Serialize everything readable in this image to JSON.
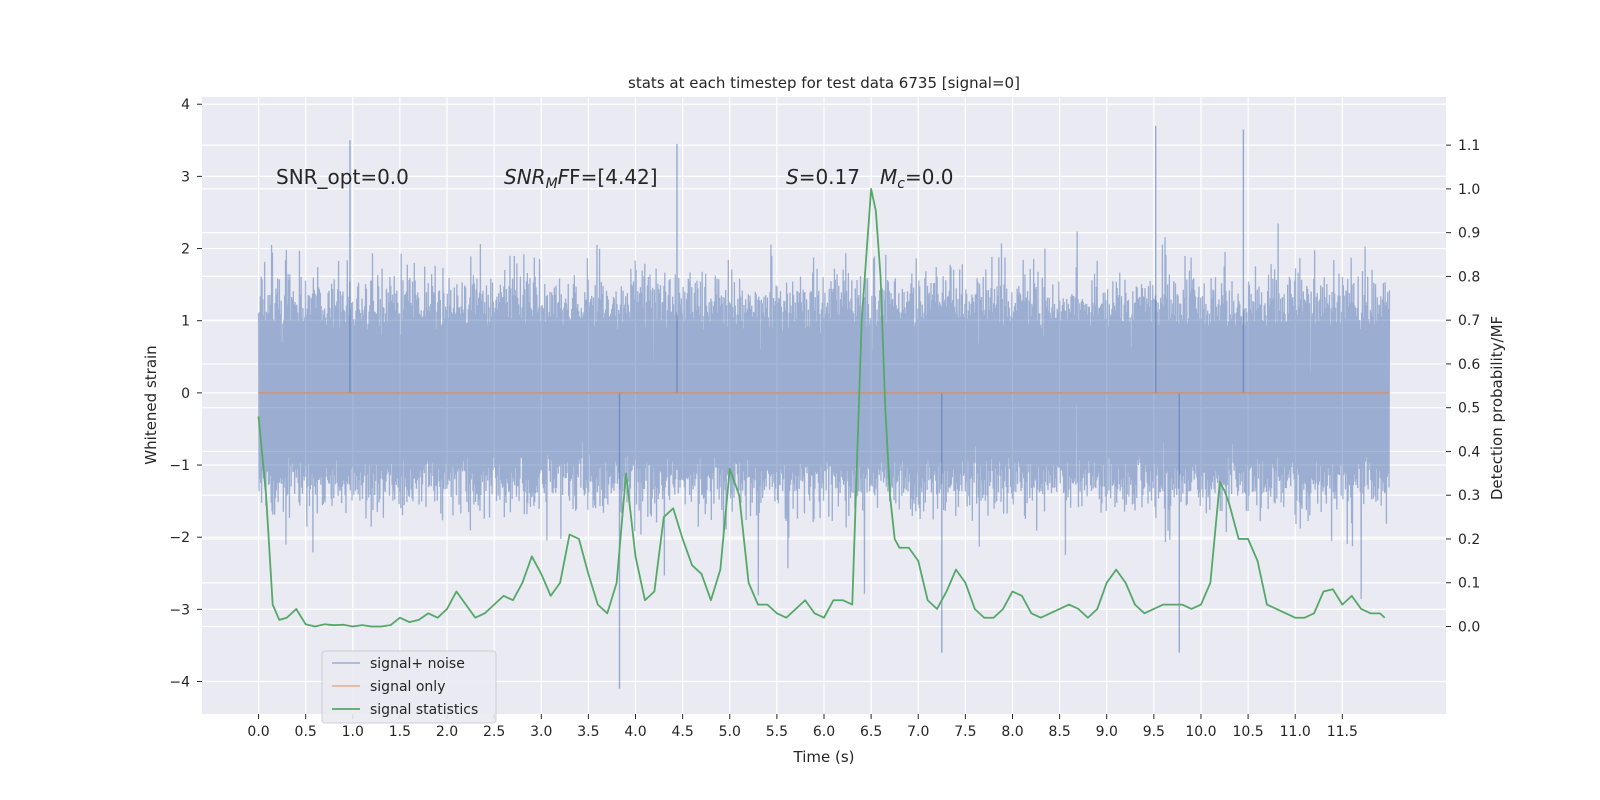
{
  "chart_data": {
    "type": "line",
    "title": "stats at each timestep for test data 6735 [signal=0]",
    "xlabel": "Time (s)",
    "ylabel": "Whitened strain",
    "y2label": "Detection probability/MF",
    "xlim": [
      -0.6,
      12.6
    ],
    "ylim": [
      -4.45,
      4.1
    ],
    "y2lim": [
      -0.2,
      1.21
    ],
    "x_ticks": [
      "0.0",
      "0.5",
      "1.0",
      "1.5",
      "2.0",
      "2.5",
      "3.0",
      "3.5",
      "4.0",
      "4.5",
      "5.0",
      "5.5",
      "6.0",
      "6.5",
      "7.0",
      "7.5",
      "8.0",
      "8.5",
      "9.0",
      "9.5",
      "10.0",
      "10.5",
      "11.0",
      "11.5"
    ],
    "y_ticks": [
      4,
      3,
      2,
      1,
      0,
      -1,
      -2,
      -3,
      -4
    ],
    "y_tick_labels": [
      "4",
      "3",
      "2",
      "1",
      "0",
      "−1",
      "−2",
      "−3",
      "−4"
    ],
    "y2_ticks": [
      1.1,
      1.0,
      0.9,
      0.8,
      0.7,
      0.6,
      0.5,
      0.4,
      0.3,
      0.2,
      0.1,
      0.0
    ],
    "y2_tick_labels": [
      "1.1",
      "1.0",
      "0.9",
      "0.8",
      "0.7",
      "0.6",
      "0.5",
      "0.4",
      "0.3",
      "0.2",
      "0.1",
      "0.0"
    ],
    "grid": true,
    "legend_position": "lower-left",
    "annotations": {
      "snr_opt": "SNR_opt=0.0",
      "snr_mf_main": "SNR",
      "snr_mf_sub": "M",
      "snr_mf_rest": "F=[4.42]",
      "s_symbol": "S",
      "s_rest": "=0.17",
      "mc_main": "M",
      "mc_sub": "c",
      "mc_rest": "=0.0"
    },
    "series": [
      {
        "name": "signal+ noise",
        "color": "#4c72b0",
        "axis": "left",
        "style": "dense noise band",
        "x_range": [
          0.0,
          12.0
        ],
        "typical_range": [
          -1.8,
          1.8
        ],
        "peak_values": [
          {
            "x": 0.97,
            "y": 3.5
          },
          {
            "x": 3.83,
            "y": -4.1
          },
          {
            "x": 4.44,
            "y": 3.45
          },
          {
            "x": 7.25,
            "y": -3.6
          },
          {
            "x": 9.52,
            "y": 3.7
          },
          {
            "x": 9.77,
            "y": -3.6
          },
          {
            "x": 10.45,
            "y": 3.65
          }
        ]
      },
      {
        "name": "signal only",
        "color": "#dd8452",
        "axis": "left",
        "x": [
          0.0,
          12.0
        ],
        "y": [
          0.0,
          0.0
        ]
      },
      {
        "name": "signal statistics",
        "color": "#55a868",
        "axis": "right",
        "x": [
          0.0,
          0.08,
          0.15,
          0.22,
          0.3,
          0.4,
          0.5,
          0.6,
          0.7,
          0.8,
          0.9,
          1.0,
          1.1,
          1.2,
          1.3,
          1.4,
          1.5,
          1.6,
          1.7,
          1.8,
          1.9,
          2.0,
          2.1,
          2.2,
          2.3,
          2.4,
          2.5,
          2.6,
          2.7,
          2.8,
          2.9,
          3.0,
          3.1,
          3.2,
          3.3,
          3.4,
          3.5,
          3.6,
          3.7,
          3.8,
          3.9,
          4.0,
          4.1,
          4.2,
          4.3,
          4.4,
          4.5,
          4.6,
          4.7,
          4.8,
          4.9,
          5.0,
          5.05,
          5.1,
          5.2,
          5.3,
          5.4,
          5.5,
          5.6,
          5.7,
          5.8,
          5.9,
          6.0,
          6.1,
          6.2,
          6.3,
          6.4,
          6.5,
          6.55,
          6.6,
          6.65,
          6.7,
          6.75,
          6.8,
          6.9,
          7.0,
          7.1,
          7.2,
          7.3,
          7.4,
          7.5,
          7.6,
          7.7,
          7.8,
          7.9,
          8.0,
          8.1,
          8.2,
          8.3,
          8.4,
          8.5,
          8.6,
          8.7,
          8.8,
          8.9,
          9.0,
          9.1,
          9.2,
          9.3,
          9.4,
          9.5,
          9.6,
          9.7,
          9.8,
          9.9,
          10.0,
          10.1,
          10.2,
          10.25,
          10.3,
          10.4,
          10.5,
          10.6,
          10.7,
          10.8,
          10.9,
          11.0,
          11.1,
          11.2,
          11.3,
          11.4,
          11.5,
          11.6,
          11.7,
          11.8,
          11.9,
          11.95
        ],
        "y": [
          0.48,
          0.3,
          0.05,
          0.015,
          0.02,
          0.04,
          0.005,
          0.0,
          0.005,
          0.003,
          0.004,
          0.0,
          0.003,
          0.0,
          0.0,
          0.003,
          0.02,
          0.01,
          0.015,
          0.03,
          0.02,
          0.04,
          0.08,
          0.05,
          0.02,
          0.03,
          0.05,
          0.07,
          0.06,
          0.1,
          0.16,
          0.12,
          0.07,
          0.1,
          0.21,
          0.2,
          0.12,
          0.05,
          0.03,
          0.1,
          0.35,
          0.16,
          0.06,
          0.08,
          0.25,
          0.27,
          0.2,
          0.14,
          0.12,
          0.06,
          0.13,
          0.36,
          0.33,
          0.3,
          0.1,
          0.05,
          0.05,
          0.03,
          0.02,
          0.04,
          0.06,
          0.03,
          0.02,
          0.06,
          0.06,
          0.05,
          0.7,
          1.0,
          0.95,
          0.8,
          0.5,
          0.3,
          0.2,
          0.18,
          0.18,
          0.15,
          0.06,
          0.04,
          0.08,
          0.13,
          0.1,
          0.04,
          0.02,
          0.02,
          0.04,
          0.08,
          0.07,
          0.03,
          0.02,
          0.03,
          0.04,
          0.05,
          0.04,
          0.02,
          0.04,
          0.1,
          0.13,
          0.1,
          0.05,
          0.03,
          0.04,
          0.05,
          0.05,
          0.05,
          0.04,
          0.05,
          0.1,
          0.33,
          0.31,
          0.28,
          0.2,
          0.2,
          0.15,
          0.05,
          0.04,
          0.03,
          0.02,
          0.02,
          0.03,
          0.08,
          0.085,
          0.05,
          0.07,
          0.04,
          0.03,
          0.03,
          0.02
        ]
      }
    ]
  }
}
